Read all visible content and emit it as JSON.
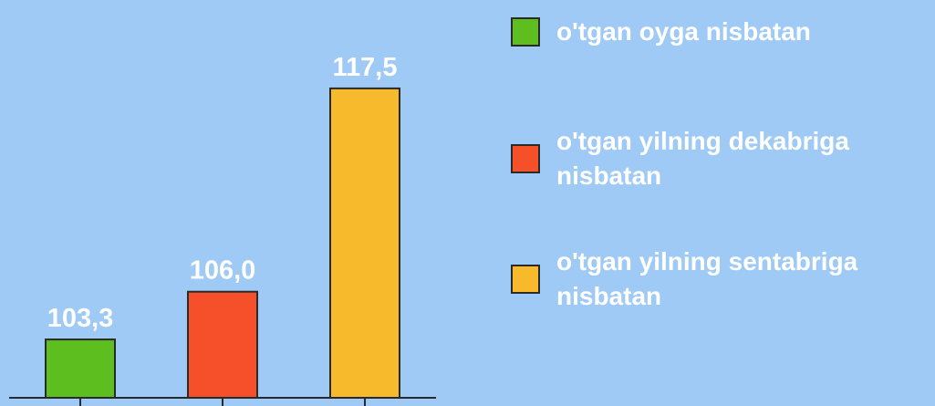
{
  "chart_data": {
    "type": "bar",
    "categories": [
      null
    ],
    "series": [
      {
        "name": "o'tgan oyga nisbatan",
        "color": "#5cbf1f",
        "values": [
          103.3
        ],
        "value_labels": [
          "103,3"
        ]
      },
      {
        "name": "o'tgan yilning dekabriga nisbatan",
        "color": "#f5502a",
        "values": [
          106.0
        ],
        "value_labels": [
          "106,0"
        ]
      },
      {
        "name": "o'tgan yilning sentabriga nisbatan",
        "color": "#f7ba2c",
        "values": [
          117.5
        ],
        "value_labels": [
          "117,5"
        ]
      }
    ],
    "ylim": [
      100,
      122.5
    ],
    "legend": "right"
  }
}
